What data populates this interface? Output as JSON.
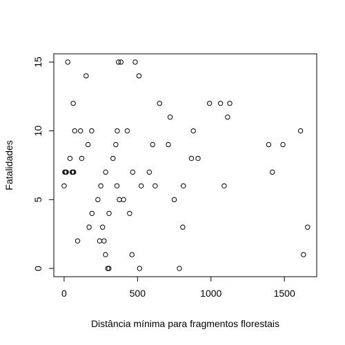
{
  "chart_data": {
    "type": "scatter",
    "title": "",
    "xlabel": "Distância mínima para fragmentos florestais",
    "ylabel": "Fatalidades",
    "xlim": [
      -70,
      1720
    ],
    "ylim": [
      -0.6,
      15.6
    ],
    "x_ticks": [
      0,
      500,
      1000,
      1500
    ],
    "y_ticks": [
      0,
      5,
      10,
      15
    ],
    "grid": false,
    "legend": "none",
    "marker": "open-circle",
    "colors": {
      "points": "#000000",
      "axis": "#000000",
      "background": "#ffffff"
    },
    "points": [
      {
        "x": 0,
        "y": 6
      },
      {
        "x": 5,
        "y": 7
      },
      {
        "x": 10,
        "y": 7
      },
      {
        "x": 15,
        "y": 7
      },
      {
        "x": 25,
        "y": 15
      },
      {
        "x": 40,
        "y": 8
      },
      {
        "x": 55,
        "y": 7
      },
      {
        "x": 60,
        "y": 7
      },
      {
        "x": 65,
        "y": 7
      },
      {
        "x": 62,
        "y": 12
      },
      {
        "x": 72,
        "y": 10
      },
      {
        "x": 92,
        "y": 2
      },
      {
        "x": 112,
        "y": 10
      },
      {
        "x": 120,
        "y": 8
      },
      {
        "x": 150,
        "y": 14
      },
      {
        "x": 163,
        "y": 9
      },
      {
        "x": 170,
        "y": 3
      },
      {
        "x": 188,
        "y": 10
      },
      {
        "x": 190,
        "y": 4
      },
      {
        "x": 230,
        "y": 5
      },
      {
        "x": 242,
        "y": 2
      },
      {
        "x": 250,
        "y": 6
      },
      {
        "x": 262,
        "y": 3
      },
      {
        "x": 272,
        "y": 2
      },
      {
        "x": 283,
        "y": 7
      },
      {
        "x": 282,
        "y": 1
      },
      {
        "x": 297,
        "y": 0
      },
      {
        "x": 305,
        "y": 0
      },
      {
        "x": 306,
        "y": 4
      },
      {
        "x": 333,
        "y": 8
      },
      {
        "x": 352,
        "y": 9
      },
      {
        "x": 360,
        "y": 6
      },
      {
        "x": 362,
        "y": 10
      },
      {
        "x": 370,
        "y": 15
      },
      {
        "x": 387,
        "y": 15
      },
      {
        "x": 376,
        "y": 5
      },
      {
        "x": 405,
        "y": 5
      },
      {
        "x": 430,
        "y": 10
      },
      {
        "x": 446,
        "y": 4
      },
      {
        "x": 462,
        "y": 1
      },
      {
        "x": 467,
        "y": 7
      },
      {
        "x": 484,
        "y": 15
      },
      {
        "x": 510,
        "y": 14
      },
      {
        "x": 514,
        "y": 0
      },
      {
        "x": 525,
        "y": 6
      },
      {
        "x": 580,
        "y": 7
      },
      {
        "x": 603,
        "y": 9
      },
      {
        "x": 620,
        "y": 6
      },
      {
        "x": 650,
        "y": 12
      },
      {
        "x": 710,
        "y": 9
      },
      {
        "x": 722,
        "y": 11
      },
      {
        "x": 750,
        "y": 5
      },
      {
        "x": 785,
        "y": 0
      },
      {
        "x": 808,
        "y": 3
      },
      {
        "x": 812,
        "y": 6
      },
      {
        "x": 867,
        "y": 8
      },
      {
        "x": 880,
        "y": 10
      },
      {
        "x": 912,
        "y": 8
      },
      {
        "x": 990,
        "y": 12
      },
      {
        "x": 1065,
        "y": 12
      },
      {
        "x": 1090,
        "y": 6
      },
      {
        "x": 1113,
        "y": 11
      },
      {
        "x": 1128,
        "y": 12
      },
      {
        "x": 1393,
        "y": 9
      },
      {
        "x": 1418,
        "y": 7
      },
      {
        "x": 1490,
        "y": 9
      },
      {
        "x": 1610,
        "y": 10
      },
      {
        "x": 1630,
        "y": 1
      },
      {
        "x": 1658,
        "y": 3
      }
    ]
  }
}
